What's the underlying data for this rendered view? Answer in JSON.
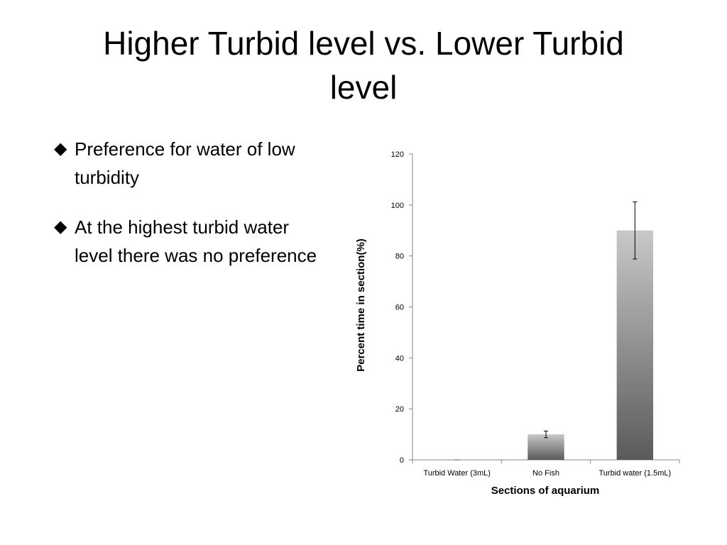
{
  "slide": {
    "title_line1": "Higher Turbid level vs. Lower Turbid",
    "title_line2": "level",
    "bullets": [
      {
        "marker": "◆",
        "text": "Preference for water of low turbidity"
      },
      {
        "marker": "◆",
        "text": "At the highest turbid water level there was no preference"
      }
    ]
  },
  "chart_data": {
    "type": "bar",
    "categories": [
      "Turbid Water (3mL)",
      "No Fish",
      "Turbid water (1.5mL)"
    ],
    "values": [
      0,
      10,
      90
    ],
    "error_bars": [
      0,
      1.3,
      11.2
    ],
    "title": "",
    "xlabel": "Sections of aquarium",
    "ylabel": "Percent time in section(%)",
    "ylim": [
      0,
      120
    ],
    "yticks": [
      0,
      20,
      40,
      60,
      80,
      100,
      120
    ],
    "grid": false,
    "legend": "none",
    "colors": {
      "bar_top": "#c8c8c8",
      "bar_bottom": "#5a5a5a",
      "axis": "#868686"
    }
  }
}
